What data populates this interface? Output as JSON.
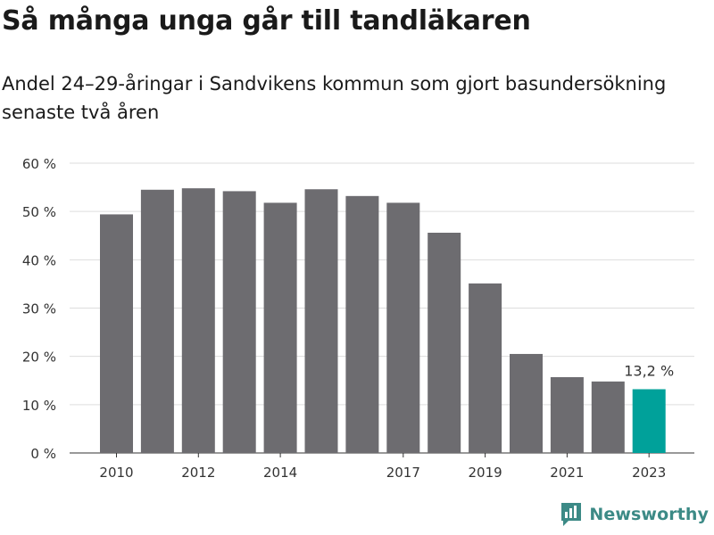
{
  "header": {
    "title": "Så många unga går till tandläkaren",
    "subtitle": "Andel 24–29-åringar i Sandvikens kommun som gjort basundersökning senaste två åren"
  },
  "chart_data": {
    "type": "bar",
    "categories": [
      "2010",
      "2011",
      "2012",
      "2013",
      "2014",
      "2015",
      "2016",
      "2017",
      "2018",
      "2019",
      "2020",
      "2021",
      "2022",
      "2023"
    ],
    "x_tick_labels": [
      "2010",
      "",
      "2012",
      "",
      "2014",
      "",
      "",
      "2017",
      "",
      "2019",
      "",
      "2021",
      "",
      "2023"
    ],
    "values": [
      49.4,
      54.5,
      54.8,
      54.2,
      51.8,
      54.6,
      53.2,
      51.8,
      45.6,
      35.1,
      20.5,
      15.7,
      14.8,
      13.2
    ],
    "ylim": [
      0,
      60
    ],
    "y_ticks": [
      0,
      10,
      20,
      30,
      40,
      50,
      60
    ],
    "y_tick_suffix": " %",
    "annotations": [
      {
        "category": "2023",
        "text": "13,2 %"
      }
    ],
    "colors": {
      "bar": "#6d6c70",
      "highlight": "#00a19a",
      "grid": "#dddddd"
    },
    "highlight_category": "2023",
    "grid": true
  },
  "footer": {
    "brand": "Newsworthy",
    "brand_color": "#3c8a86",
    "logo_icon": "newsworthy-logo-icon"
  }
}
